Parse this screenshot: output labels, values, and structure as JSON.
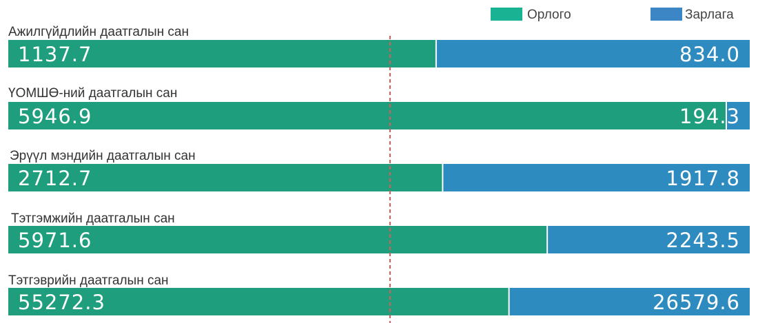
{
  "chart_data": {
    "type": "bar",
    "orientation": "horizontal",
    "stacked": true,
    "normalized": true,
    "categories": [
      "Ажилгүйдлийн даатгалын сан",
      "ҮОМШӨ-ний даатгалын сан",
      "Эрүүл мэндийн даатгалын сан",
      "Тэтгэмжийн даатгалын сан",
      "Тэтгэврийн даатгалын сан"
    ],
    "series": [
      {
        "name": "Орлого",
        "values": [
          1137.7,
          5946.9,
          2712.7,
          5971.6,
          55272.3
        ],
        "value_labels": [
          "1137.7",
          "5946.9",
          "2712.7",
          "5971.6",
          "55272.3"
        ]
      },
      {
        "name": "Зарлага",
        "values": [
          834.0,
          194.3,
          1917.8,
          2243.5,
          26579.6
        ],
        "value_labels": [
          "834.0",
          "194.3",
          "1917.8",
          "2243.5",
          "26579.6"
        ]
      }
    ],
    "legend_position": "top-right",
    "reference_line": "dashed-red-vertical",
    "grid": false
  },
  "colors": {
    "income": "#1f9e7e",
    "expense": "#2e8bc0",
    "legend_income": "#19b394",
    "legend_expense": "#3d86c6",
    "reference_line": "#e05a5a",
    "divider": "#ffffff"
  }
}
